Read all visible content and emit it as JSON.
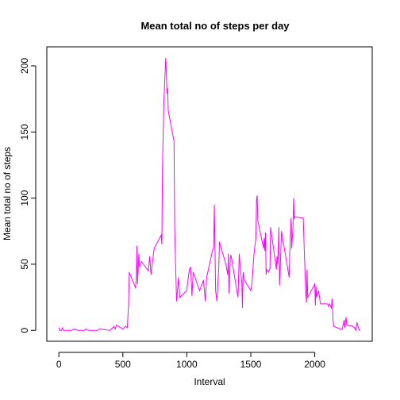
{
  "chart_data": {
    "type": "line",
    "title": "Mean total no of steps per day",
    "x_label": "Interval",
    "y_label": "Mean total no of steps",
    "x": [
      0,
      5,
      10,
      20,
      30,
      35,
      50,
      100,
      120,
      150,
      200,
      210,
      230,
      300,
      320,
      400,
      430,
      440,
      450,
      500,
      520,
      535,
      545,
      550,
      600,
      605,
      610,
      615,
      625,
      630,
      645,
      700,
      710,
      720,
      740,
      745,
      800,
      805,
      810,
      820,
      835,
      840,
      845,
      850,
      855,
      900,
      905,
      910,
      920,
      935,
      945,
      1000,
      1005,
      1020,
      1030,
      1040,
      1050,
      1100,
      1130,
      1145,
      1155,
      1200,
      1210,
      1215,
      1225,
      1235,
      1250,
      1255,
      1305,
      1320,
      1325,
      1330,
      1340,
      1345,
      1400,
      1410,
      1420,
      1430,
      1435,
      1440,
      1450,
      1500,
      1510,
      1525,
      1540,
      1545,
      1550,
      1555,
      1600,
      1605,
      1610,
      1615,
      1620,
      1625,
      1640,
      1650,
      1655,
      1700,
      1705,
      1710,
      1715,
      1720,
      1725,
      1735,
      1740,
      1800,
      1805,
      1815,
      1820,
      1830,
      1835,
      1840,
      1845,
      1900,
      1910,
      1920,
      1930,
      1935,
      1940,
      1945,
      2000,
      2005,
      2010,
      2015,
      2030,
      2045,
      2100,
      2110,
      2115,
      2130,
      2135,
      2145,
      2150,
      2200,
      2215,
      2230,
      2235,
      2245,
      2250,
      2300,
      2310,
      2320,
      2330,
      2335,
      2345,
      2350,
      2355
    ],
    "series": [
      {
        "name": "Mean total no of steps",
        "color": "#ff00ff",
        "values": [
          2,
          0,
          0,
          0,
          2,
          0,
          0,
          0,
          1,
          0,
          0,
          1,
          0,
          0,
          1,
          0,
          3,
          1,
          4,
          1,
          3,
          2,
          20,
          44,
          32,
          40,
          64,
          35,
          58,
          48,
          52,
          45,
          56,
          42,
          58,
          62,
          72,
          65,
          125,
          171,
          206,
          195,
          179,
          183,
          166,
          143,
          80,
          58,
          22,
          40,
          25,
          30,
          35,
          46,
          48,
          26,
          44,
          30,
          38,
          22,
          40,
          60,
          63,
          95,
          30,
          22,
          48,
          67,
          50,
          42,
          58,
          28,
          55,
          57,
          25,
          58,
          45,
          36,
          17,
          44,
          38,
          30,
          36,
          58,
          70,
          99,
          102,
          83,
          62,
          70,
          60,
          74,
          42,
          46,
          44,
          47,
          78,
          46,
          56,
          50,
          61,
          78,
          34,
          60,
          75,
          40,
          59,
          85,
          62,
          78,
          100,
          84,
          86,
          85,
          85,
          55,
          27,
          21,
          46,
          25,
          35,
          19,
          33,
          25,
          30,
          20,
          20,
          18,
          20,
          17,
          24,
          5,
          3,
          1,
          1,
          8,
          2,
          10,
          4,
          3,
          2,
          0,
          6,
          4,
          1,
          0,
          1
        ]
      }
    ],
    "xlim": [
      -94.2,
      2449.2
    ],
    "ylim": [
      -8.25,
      214.4
    ],
    "xticks": [
      0,
      500,
      1000,
      1500,
      2000
    ],
    "yticks": [
      0,
      50,
      100,
      150,
      200
    ]
  }
}
